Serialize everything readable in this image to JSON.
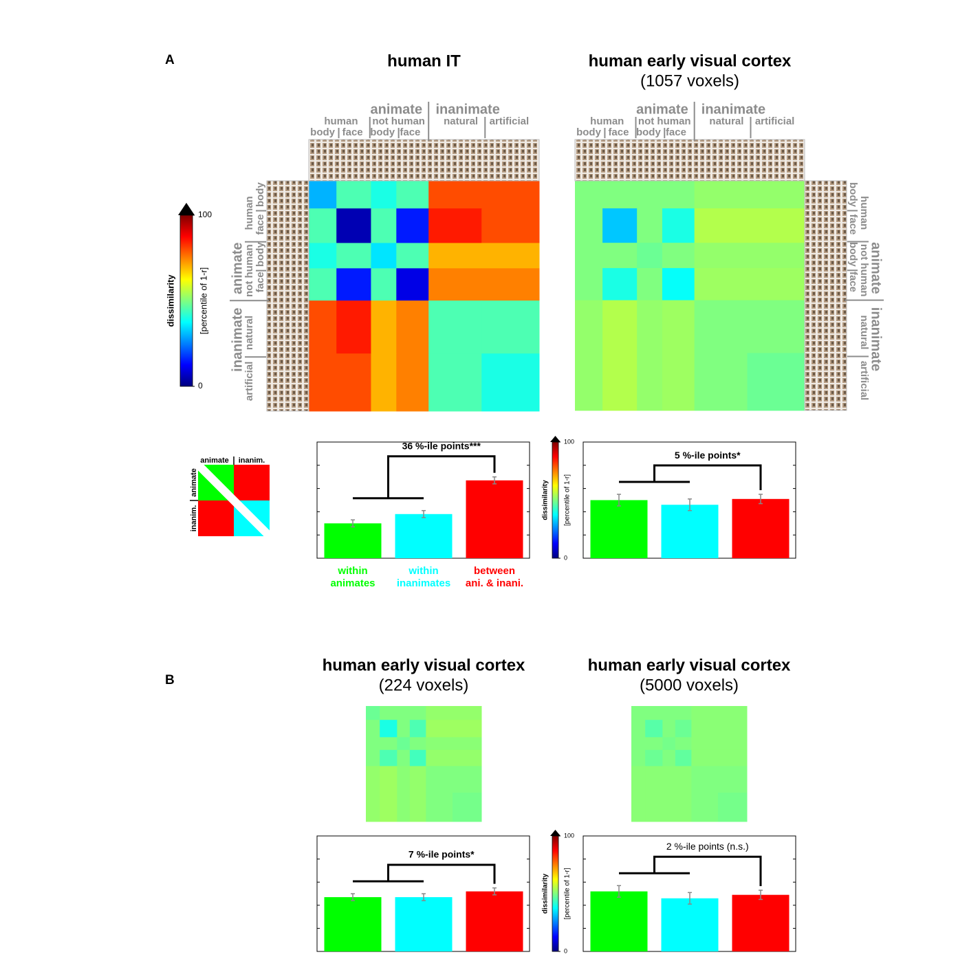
{
  "panels": [
    "A",
    "B"
  ],
  "schematic": {
    "top": [
      "animate",
      "inanim."
    ],
    "left": [
      "animate",
      "inanim."
    ]
  },
  "colorbars": [
    {
      "label": "dissimilarity",
      "sublabel": "[percentile of 1-r]",
      "ticks": [
        0,
        100
      ]
    },
    {
      "label": "dissimilarity",
      "sublabel": "[percentile of 1-r]",
      "ticks": [
        0,
        100
      ]
    },
    {
      "label": "dissimilarity",
      "sublabel": "[percentile of 1-r]",
      "ticks": [
        0,
        100
      ]
    }
  ],
  "chart_data": [
    {
      "type": "heatmap",
      "title": "human IT",
      "clim": [
        0,
        100
      ],
      "groups": {
        "tier1": [
          "animate",
          "inanimate"
        ],
        "tier2": [
          "human",
          "not human",
          "natural",
          "artificial"
        ],
        "tier3": [
          "body",
          "face",
          "body",
          "face"
        ]
      },
      "values": [
        [
          30,
          45,
          40,
          45,
          80,
          80
        ],
        [
          45,
          5,
          45,
          15,
          85,
          80
        ],
        [
          40,
          45,
          35,
          45,
          70,
          70
        ],
        [
          45,
          15,
          45,
          10,
          75,
          75
        ],
        [
          80,
          85,
          70,
          75,
          45,
          45
        ],
        [
          80,
          80,
          70,
          75,
          45,
          40
        ]
      ]
    },
    {
      "type": "heatmap",
      "title": "human early visual cortex",
      "subtitle": "(1057 voxels)",
      "clim": [
        0,
        100
      ],
      "groups": {
        "tier1": [
          "animate",
          "inanimate"
        ],
        "tier2": [
          "human",
          "not human",
          "natural",
          "artificial"
        ],
        "tier3": [
          "body",
          "face",
          "body",
          "face"
        ]
      },
      "values": [
        [
          50,
          50,
          50,
          50,
          52,
          52
        ],
        [
          50,
          32,
          50,
          40,
          55,
          55
        ],
        [
          50,
          50,
          48,
          50,
          52,
          52
        ],
        [
          50,
          40,
          50,
          38,
          53,
          53
        ],
        [
          52,
          55,
          52,
          53,
          50,
          50
        ],
        [
          52,
          55,
          52,
          53,
          50,
          48
        ]
      ]
    },
    {
      "type": "bar",
      "annotation": "36 %-ile points***",
      "categories": [
        [
          "within",
          "animates"
        ],
        [
          "within",
          "inanimates"
        ],
        [
          "between",
          "ani. & inani."
        ]
      ],
      "values": [
        30,
        38,
        67
      ],
      "errors": [
        3,
        3,
        3
      ],
      "colors": [
        "#00ff00",
        "#00ffff",
        "#ff0000"
      ],
      "ylim": [
        0,
        100
      ],
      "yticks": [
        0,
        20,
        40,
        60,
        80,
        100
      ]
    },
    {
      "type": "bar",
      "annotation": "5 %-ile points*",
      "values": [
        50,
        46,
        51
      ],
      "errors": [
        5,
        5,
        4
      ],
      "colors": [
        "#00ff00",
        "#00ffff",
        "#ff0000"
      ],
      "ylim": [
        0,
        100
      ],
      "yticks": [
        0,
        20,
        40,
        60,
        80,
        100
      ]
    },
    {
      "type": "heatmap",
      "title": "human early visual cortex",
      "subtitle": "(224 voxels)",
      "clim": [
        0,
        100
      ],
      "values": [
        [
          48,
          50,
          50,
          50,
          52,
          52
        ],
        [
          50,
          40,
          50,
          45,
          53,
          53
        ],
        [
          50,
          50,
          48,
          50,
          51,
          51
        ],
        [
          50,
          45,
          50,
          44,
          52,
          52
        ],
        [
          52,
          53,
          51,
          52,
          50,
          50
        ],
        [
          52,
          53,
          51,
          52,
          50,
          49
        ]
      ]
    },
    {
      "type": "heatmap",
      "title": "human early visual cortex",
      "subtitle": "(5000 voxels)",
      "clim": [
        0,
        100
      ],
      "values": [
        [
          50,
          50,
          50,
          50,
          51,
          51
        ],
        [
          50,
          46,
          50,
          48,
          51,
          51
        ],
        [
          50,
          50,
          49,
          50,
          51,
          51
        ],
        [
          50,
          48,
          50,
          47,
          51,
          51
        ],
        [
          51,
          51,
          51,
          51,
          50,
          50
        ],
        [
          51,
          51,
          51,
          51,
          50,
          49
        ]
      ]
    },
    {
      "type": "bar",
      "annotation": "7 %-ile points*",
      "values": [
        47,
        47,
        52
      ],
      "errors": [
        3,
        3,
        3
      ],
      "colors": [
        "#00ff00",
        "#00ffff",
        "#ff0000"
      ],
      "ylim": [
        0,
        100
      ],
      "yticks": [
        0,
        20,
        40,
        60,
        80,
        100
      ]
    },
    {
      "type": "bar",
      "annotation": "2 %-ile points (n.s.)",
      "values": [
        52,
        46,
        49
      ],
      "errors": [
        5,
        5,
        4
      ],
      "colors": [
        "#00ff00",
        "#00ffff",
        "#ff0000"
      ],
      "ylim": [
        0,
        100
      ],
      "yticks": [
        0,
        20,
        40,
        60,
        80,
        100
      ]
    }
  ]
}
